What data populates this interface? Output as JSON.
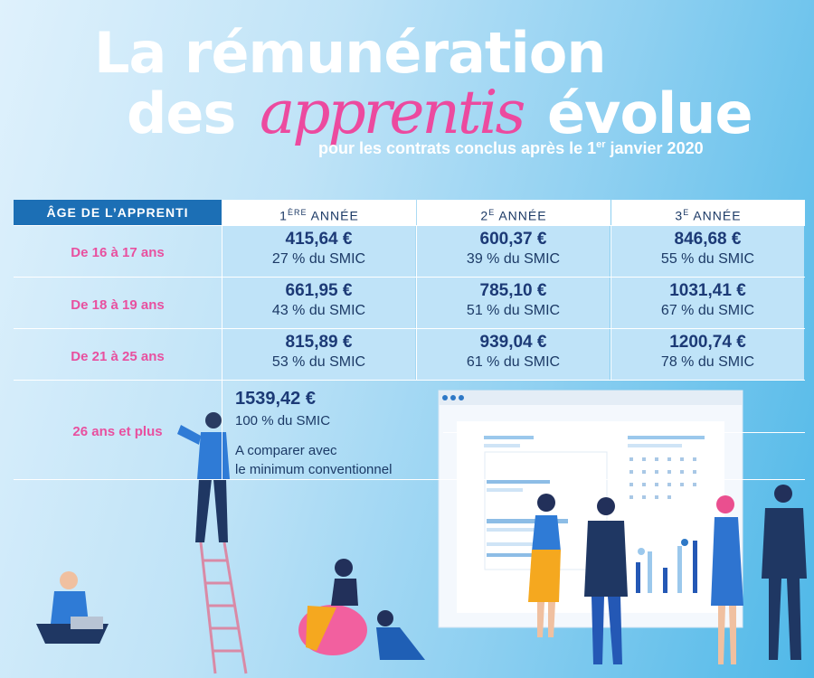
{
  "header": {
    "title_line1": "La rémunération",
    "title_line2_before": "des",
    "title_line2_script": "apprentis",
    "title_line2_after": "évolue",
    "subtitle_before": "pour les contrats conclus après le 1",
    "subtitle_sup": "er",
    "subtitle_after": " janvier 2020"
  },
  "table": {
    "age_header": "ÂGE DE L’APPRENTI",
    "columns": [
      {
        "num": "1",
        "sup": "ÈRE",
        "label": " ANNÉE"
      },
      {
        "num": "2",
        "sup": "E",
        "label": " ANNÉE"
      },
      {
        "num": "3",
        "sup": "E",
        "label": " ANNÉE"
      }
    ],
    "rows": [
      {
        "age": "De 16 à 17 ans",
        "cells": [
          {
            "amount": "415,64 €",
            "pct": "27 % du SMIC"
          },
          {
            "amount": "600,37 €",
            "pct": "39 % du SMIC"
          },
          {
            "amount": "846,68 €",
            "pct": "55 %  du SMIC"
          }
        ]
      },
      {
        "age": "De 18 à 19 ans",
        "cells": [
          {
            "amount": "661,95 €",
            "pct": "43 % du SMIC"
          },
          {
            "amount": "785,10 €",
            "pct": "51 % du SMIC"
          },
          {
            "amount": "1031,41 €",
            "pct": "67 % du SMIC"
          }
        ]
      },
      {
        "age": "De 21 à 25 ans",
        "cells": [
          {
            "amount": "815,89 €",
            "pct": "53 %  du SMIC"
          },
          {
            "amount": "939,04 €",
            "pct": "61 % du SMIC"
          },
          {
            "amount": "1200,74 €",
            "pct": "78 % du SMIC"
          }
        ]
      }
    ],
    "last_row": {
      "age": "26 ans et plus",
      "amount": "1539,42 €",
      "pct": "100 %  du SMIC",
      "note_line1": "A comparer avec",
      "note_line2": "le minimum conventionnel"
    }
  },
  "colors": {
    "accent_pink": "#ec4a9f",
    "header_blue": "#1c6fb5",
    "text_navy": "#1c3a76",
    "cell_blue": "#bfe3f8"
  },
  "icons": [
    "browser-window-illustration",
    "bar-chart-illustration",
    "people-illustration",
    "ladder-illustration"
  ]
}
